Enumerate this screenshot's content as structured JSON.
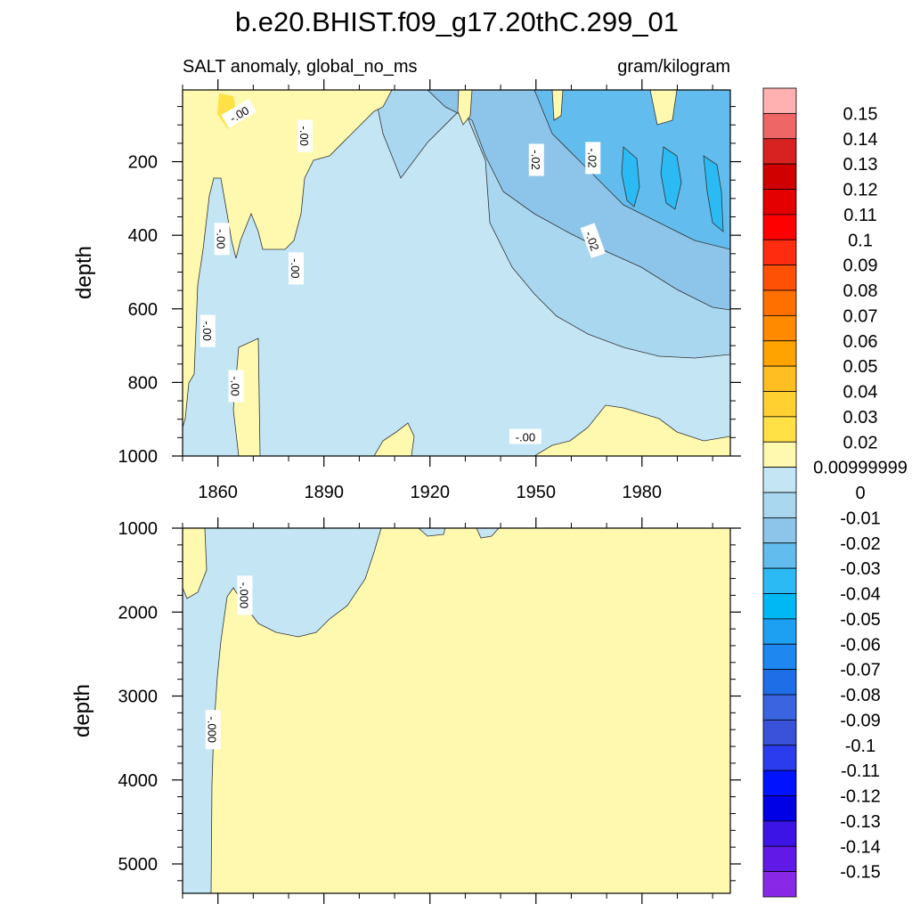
{
  "chart_data": {
    "type": "heatmap",
    "title": "b.e20.BHIST.f09_g17.20thC.299_01",
    "subtitle_left": "SALT anomaly, global_no_ms",
    "subtitle_right": "gram/kilogram",
    "colors": {
      "pos_01": "#fff9b0",
      "pos_02": "#ffe045",
      "pos_03": "#ffd030",
      "pos_04": "#ffbf22",
      "neg_01": "#c4e6f4",
      "neg_02": "#a9d7f0",
      "neg_03": "#8dc5ea",
      "neg_04": "#62bdee",
      "neg_05": "#2cbaf4",
      "contour": "#333333"
    },
    "colorbar": {
      "labels": [
        "0.15",
        "0.14",
        "0.13",
        "0.12",
        "0.11",
        "0.1",
        "0.09",
        "0.08",
        "0.07",
        "0.06",
        "0.05",
        "0.04",
        "0.03",
        "0.02",
        "0.00999999",
        "0",
        "-0.01",
        "-0.02",
        "-0.03",
        "-0.04",
        "-0.05",
        "-0.06",
        "-0.07",
        "-0.08",
        "-0.09",
        "-0.1",
        "-0.11",
        "-0.12",
        "-0.13",
        "-0.14",
        "-0.15"
      ],
      "colors": [
        "#ffb1b1",
        "#ef6666",
        "#d82222",
        "#d10000",
        "#e50000",
        "#ff0000",
        "#ff2c0f",
        "#ff5106",
        "#ff7000",
        "#ff8a00",
        "#ffa300",
        "#ffbf22",
        "#ffd030",
        "#ffe045",
        "#fff9b0",
        "#c4e6f4",
        "#a9d7f0",
        "#8dc5ea",
        "#62bdee",
        "#2cbaf4",
        "#00b8f4",
        "#1ea0f2",
        "#1e87f0",
        "#1e6ee8",
        "#3a64e0",
        "#3a52da",
        "#2a3cee",
        "#0012ff",
        "#0000e6",
        "#3c14e6",
        "#6019e6",
        "#8a28e8"
      ]
    },
    "top_panel": {
      "ylabel": "depth",
      "xlim": [
        1850,
        2005
      ],
      "ylim": [
        1000,
        5
      ],
      "xticks": [
        1860,
        1890,
        1920,
        1950,
        1980
      ],
      "xtick_labels": [
        "1860",
        "1890",
        "1920",
        "1950",
        "1980"
      ],
      "yticks": [
        200,
        400,
        600,
        800,
        1000
      ],
      "ytick_labels": [
        "200",
        "400",
        "600",
        "800",
        "1000"
      ],
      "contour_labels": [
        {
          "text": "-.00",
          "x": 1884.5,
          "y": 130,
          "angle": 90
        },
        {
          "text": "-.00",
          "x": 1866,
          "y": 70,
          "angle": -30
        },
        {
          "text": "-.02",
          "x": 1950,
          "y": 195,
          "angle": 90
        },
        {
          "text": "-.02",
          "x": 1966,
          "y": 190,
          "angle": 90
        },
        {
          "text": "-.00",
          "x": 1861,
          "y": 410,
          "angle": 90
        },
        {
          "text": "-.02",
          "x": 1966,
          "y": 415,
          "angle": 70
        },
        {
          "text": "-.00",
          "x": 1882,
          "y": 490,
          "angle": 90
        },
        {
          "text": "-.00",
          "x": 1857,
          "y": 660,
          "angle": 90
        },
        {
          "text": "-.00",
          "x": 1865,
          "y": 810,
          "angle": 90
        },
        {
          "text": "-.00",
          "x": 1947,
          "y": 948,
          "angle": 0
        }
      ]
    },
    "bottom_panel": {
      "ylabel": "depth",
      "xlim": [
        1850,
        2005
      ],
      "ylim": [
        5350,
        1000
      ],
      "xticks": [
        1860,
        1890,
        1920,
        1950,
        1980
      ],
      "yticks": [
        1000,
        2000,
        3000,
        4000,
        5000
      ],
      "ytick_labels": [
        "1000",
        "2000",
        "3000",
        "4000",
        "5000"
      ],
      "contour_labels": [
        {
          "text": "-.000",
          "x": 1867.5,
          "y": 1800,
          "angle": 90
        },
        {
          "text": "-.000",
          "x": 1858.5,
          "y": 3400,
          "angle": 90
        }
      ]
    }
  }
}
